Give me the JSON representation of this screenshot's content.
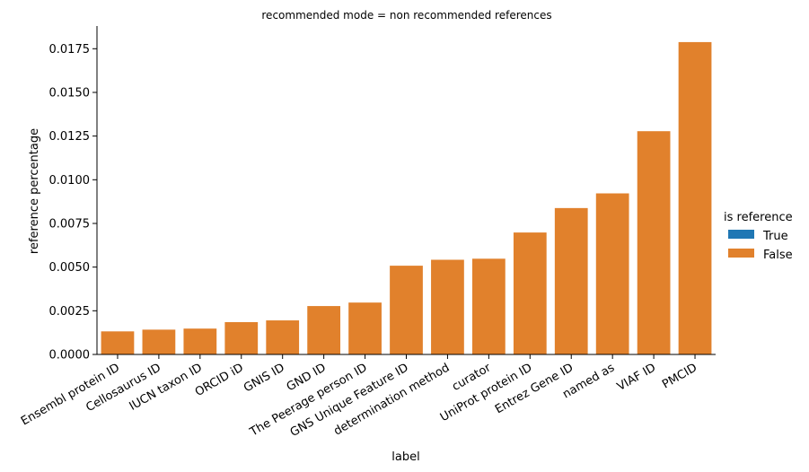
{
  "chart_data": {
    "type": "bar",
    "title": "recommended mode = non recommended references",
    "xlabel": "label",
    "ylabel": "reference percentage",
    "categories": [
      "Ensembl protein ID",
      "Cellosaurus ID",
      "IUCN taxon ID",
      "ORCID iD",
      "GNIS ID",
      "GND ID",
      "The Peerage person ID",
      "GNS Unique Feature ID",
      "determination method",
      "curator",
      "UniProt protein ID",
      "Entrez Gene ID",
      "named as",
      "VIAF ID",
      "PMCID"
    ],
    "series": [
      {
        "name": "True",
        "color": "#1f77b4",
        "values": [
          0,
          0,
          0,
          0,
          0,
          0,
          0,
          0,
          0,
          0,
          0,
          0,
          0,
          0,
          0
        ]
      },
      {
        "name": "False",
        "color": "#e1812c",
        "values": [
          0.00132,
          0.00142,
          0.00148,
          0.00185,
          0.00195,
          0.00277,
          0.00297,
          0.00508,
          0.00542,
          0.00548,
          0.00698,
          0.00838,
          0.00922,
          0.01278,
          0.01788
        ]
      }
    ],
    "yticks": [
      "0.0000",
      "0.0025",
      "0.0050",
      "0.0075",
      "0.0100",
      "0.0125",
      "0.0150",
      "0.0175"
    ],
    "ylim": [
      0,
      0.0188
    ],
    "legend": {
      "title": "is reference",
      "position": "right"
    },
    "grid": false
  }
}
